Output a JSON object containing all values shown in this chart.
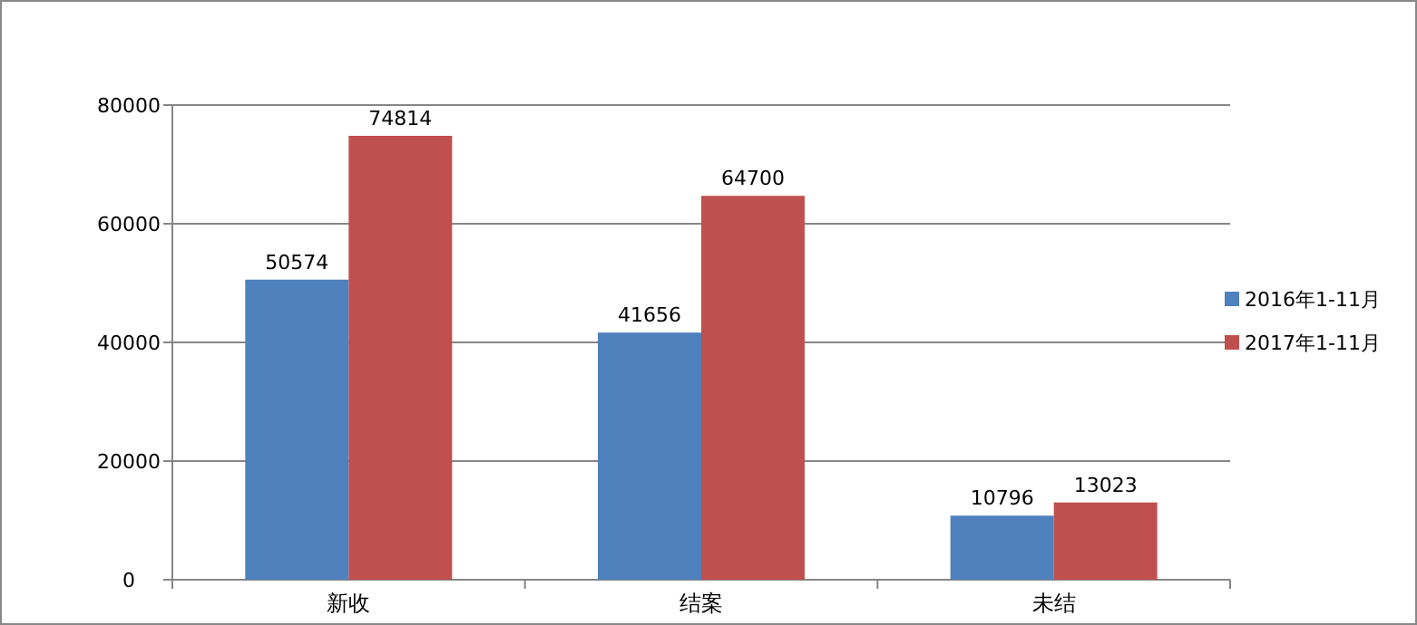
{
  "chart_data": {
    "type": "bar",
    "categories": [
      "新收",
      "结案",
      "未结"
    ],
    "series": [
      {
        "name": "2016年1-11月",
        "color": "#4f81bd",
        "values": [
          50574,
          41656,
          10796
        ]
      },
      {
        "name": "2017年1-11月",
        "color": "#c0504d",
        "values": [
          74814,
          64700,
          13023
        ]
      }
    ],
    "ylim": [
      0,
      80000
    ],
    "yticks": [
      0,
      20000,
      40000,
      60000,
      80000
    ],
    "grid": "y",
    "data_labels": true,
    "legend": "right"
  }
}
